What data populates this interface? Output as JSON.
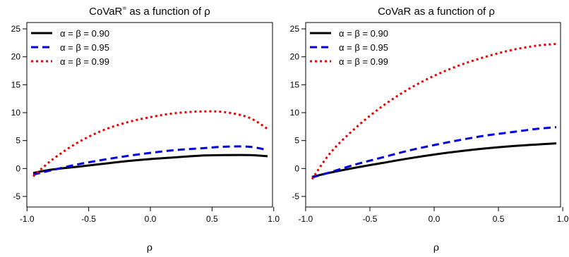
{
  "chart_data": [
    {
      "type": "line",
      "title": "CoVaR= as a function of ρ",
      "title_main": "CoVaR",
      "title_sup": "=",
      "title_rest": " as a function of ρ",
      "xlabel": "ρ",
      "ylabel": "",
      "xlim": [
        -0.95,
        0.95
      ],
      "ylim": [
        -5,
        25
      ],
      "xticks": [
        -1.0,
        -0.5,
        0.0,
        0.5,
        1.0
      ],
      "xtick_labels": [
        "-1.0",
        "-0.5",
        "0.0",
        "0.5",
        "1.0"
      ],
      "yticks": [
        -5,
        0,
        5,
        10,
        15,
        20,
        25
      ],
      "ytick_labels": [
        "-5",
        "0",
        "5",
        "10",
        "15",
        "20",
        "25"
      ],
      "grid": false,
      "legend": "top-left",
      "x": [
        -0.95,
        -0.8,
        -0.6,
        -0.4,
        -0.2,
        0.0,
        0.2,
        0.4,
        0.6,
        0.8,
        0.95
      ],
      "series": [
        {
          "name": "α = β = 0.90",
          "color": "#000000",
          "style": "solid",
          "values": [
            -0.8,
            -0.2,
            0.3,
            0.8,
            1.3,
            1.7,
            2.0,
            2.3,
            2.4,
            2.4,
            2.2
          ]
        },
        {
          "name": "α = β = 0.95",
          "color": "#0000dd",
          "style": "dashed",
          "values": [
            -1.1,
            -0.3,
            0.7,
            1.5,
            2.2,
            2.8,
            3.3,
            3.6,
            3.9,
            3.9,
            3.3
          ]
        },
        {
          "name": "α = β = 0.99",
          "color": "#ee0000",
          "style": "dotted",
          "values": [
            -1.4,
            1.5,
            4.5,
            6.7,
            8.2,
            9.2,
            9.9,
            10.2,
            10.1,
            9.1,
            7.1
          ]
        }
      ]
    },
    {
      "type": "line",
      "title": "CoVaR as a function of ρ",
      "title_main": "CoVaR as a function of ρ",
      "title_sup": "",
      "title_rest": "",
      "xlabel": "ρ",
      "ylabel": "",
      "xlim": [
        -0.95,
        0.95
      ],
      "ylim": [
        -5,
        25
      ],
      "xticks": [
        -1.0,
        -0.5,
        0.0,
        0.5,
        1.0
      ],
      "xtick_labels": [
        "-1.0",
        "-0.5",
        "0.0",
        "0.5",
        "1.0"
      ],
      "yticks": [
        -5,
        0,
        5,
        10,
        15,
        20,
        25
      ],
      "ytick_labels": [
        "-5",
        "0",
        "5",
        "10",
        "15",
        "20",
        "25"
      ],
      "grid": false,
      "legend": "top-left",
      "x": [
        -0.95,
        -0.8,
        -0.6,
        -0.4,
        -0.2,
        0.0,
        0.2,
        0.4,
        0.6,
        0.8,
        0.95
      ],
      "series": [
        {
          "name": "α = β = 0.90",
          "color": "#000000",
          "style": "solid",
          "values": [
            -1.5,
            -0.7,
            0.2,
            1.0,
            1.8,
            2.5,
            3.1,
            3.6,
            4.0,
            4.3,
            4.5
          ]
        },
        {
          "name": "α = β = 0.95",
          "color": "#0000dd",
          "style": "dashed",
          "values": [
            -1.6,
            -0.6,
            0.8,
            2.0,
            3.2,
            4.2,
            5.1,
            5.9,
            6.5,
            7.1,
            7.4
          ]
        },
        {
          "name": "α = β = 0.99",
          "color": "#ee0000",
          "style": "dotted",
          "values": [
            -1.9,
            3.0,
            7.5,
            11.2,
            14.2,
            16.6,
            18.5,
            20.0,
            21.2,
            22.0,
            22.3
          ]
        }
      ]
    }
  ]
}
